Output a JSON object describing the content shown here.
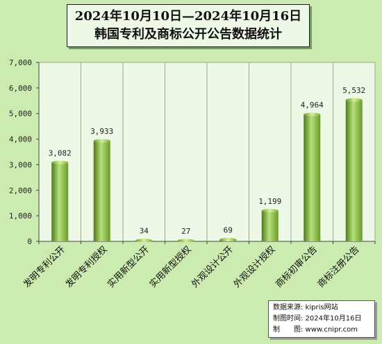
{
  "chart_data": {
    "type": "bar",
    "title": [
      "2024年10月10日—2024年10月16日",
      "韩国专利及商标公开公告数据统计"
    ],
    "categories": [
      "发明专利公开",
      "发明专利授权",
      "实用新型公开",
      "实用新型授权",
      "外观设计公开",
      "外观设计授权",
      "商标初审公告",
      "商标注册公告"
    ],
    "values": [
      3082,
      3933,
      34,
      27,
      69,
      1199,
      4964,
      5532
    ],
    "value_labels": [
      "3,082",
      "3,933",
      "34",
      "27",
      "69",
      "1,199",
      "4,964",
      "5,532"
    ],
    "ylim": [
      0,
      7000
    ],
    "yticks": [
      0,
      1000,
      2000,
      3000,
      4000,
      5000,
      6000,
      7000
    ],
    "ytick_labels": [
      "0",
      "1,000",
      "2,000",
      "3,000",
      "4,000",
      "5,000",
      "6,000",
      "7,000"
    ],
    "grid": "vertical-separators",
    "bar_color": "#8dc63f",
    "bar_color_dark": "#4f7a1a",
    "plot_background": "#eef8e6"
  },
  "source": {
    "line1": "数据来源: kipris网站",
    "line2": "制图时间: 2024年10月16日",
    "line3": "制　　图: www.cnipr.com"
  }
}
